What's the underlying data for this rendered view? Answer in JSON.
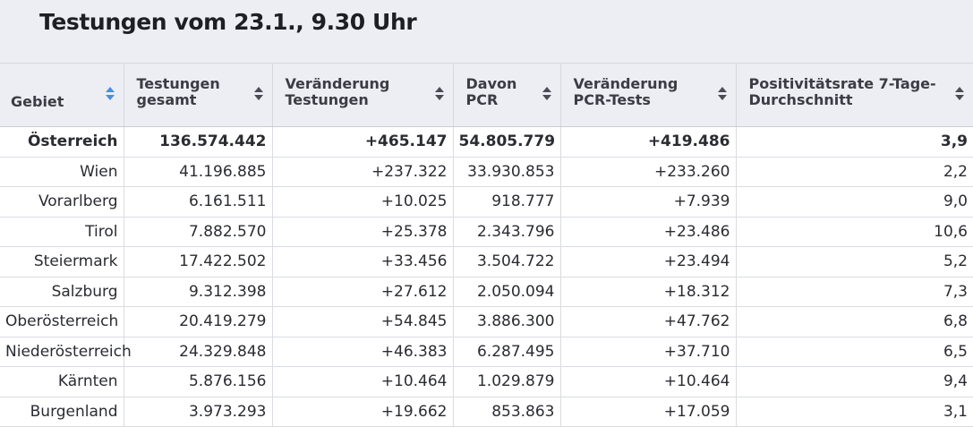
{
  "title": "Testungen vom 23.1., 9.30 Uhr",
  "columns": [
    {
      "label": "Gebiet",
      "active_sort": true
    },
    {
      "label": "Testungen gesamt"
    },
    {
      "label": "Veränderung Testungen"
    },
    {
      "label": "Davon PCR"
    },
    {
      "label": "Veränderung PCR-Tests"
    },
    {
      "label": "Positivitätsrate 7-Tage-Durchschnitt"
    }
  ],
  "rows": [
    {
      "gebiet": "Österreich",
      "gesamt": "136.574.442",
      "veraenderung": "+465.147",
      "pcr": "54.805.779",
      "veraenderung_pcr": "+419.486",
      "rate": "3,9",
      "total": true
    },
    {
      "gebiet": "Wien",
      "gesamt": "41.196.885",
      "veraenderung": "+237.322",
      "pcr": "33.930.853",
      "veraenderung_pcr": "+233.260",
      "rate": "2,2"
    },
    {
      "gebiet": "Vorarlberg",
      "gesamt": "6.161.511",
      "veraenderung": "+10.025",
      "pcr": "918.777",
      "veraenderung_pcr": "+7.939",
      "rate": "9,0"
    },
    {
      "gebiet": "Tirol",
      "gesamt": "7.882.570",
      "veraenderung": "+25.378",
      "pcr": "2.343.796",
      "veraenderung_pcr": "+23.486",
      "rate": "10,6"
    },
    {
      "gebiet": "Steiermark",
      "gesamt": "17.422.502",
      "veraenderung": "+33.456",
      "pcr": "3.504.722",
      "veraenderung_pcr": "+23.494",
      "rate": "5,2"
    },
    {
      "gebiet": "Salzburg",
      "gesamt": "9.312.398",
      "veraenderung": "+27.612",
      "pcr": "2.050.094",
      "veraenderung_pcr": "+18.312",
      "rate": "7,3"
    },
    {
      "gebiet": "Oberösterreich",
      "gesamt": "20.419.279",
      "veraenderung": "+54.845",
      "pcr": "3.886.300",
      "veraenderung_pcr": "+47.762",
      "rate": "6,8"
    },
    {
      "gebiet": "Niederösterreich",
      "gesamt": "24.329.848",
      "veraenderung": "+46.383",
      "pcr": "6.287.495",
      "veraenderung_pcr": "+37.710",
      "rate": "6,5"
    },
    {
      "gebiet": "Kärnten",
      "gesamt": "5.876.156",
      "veraenderung": "+10.464",
      "pcr": "1.029.879",
      "veraenderung_pcr": "+10.464",
      "rate": "9,4"
    },
    {
      "gebiet": "Burgenland",
      "gesamt": "3.973.293",
      "veraenderung": "+19.662",
      "pcr": "853.863",
      "veraenderung_pcr": "+17.059",
      "rate": "3,1"
    }
  ]
}
